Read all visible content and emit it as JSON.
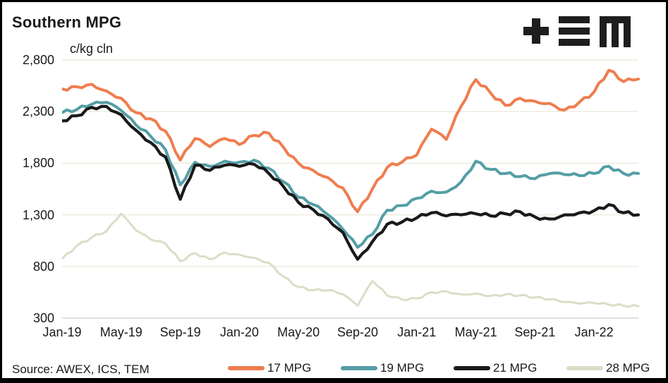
{
  "header": {
    "title": "Southern MPG",
    "units_label": "c/kg cln",
    "logo": {
      "name": "tem-logo",
      "color": "#1e1e1e"
    }
  },
  "source": {
    "label": "Source: AWEX, ICS, TEM"
  },
  "chart_data": {
    "type": "line",
    "title": "Southern MPG",
    "ylabel": "c/kg cln",
    "x_start": "Jan-19",
    "x_step": "1 month",
    "x_tick_labels": [
      "Jan-19",
      "May-19",
      "Sep-19",
      "Jan-20",
      "May-20",
      "Sep-20",
      "Jan-21",
      "May-21",
      "Sep-21",
      "Jan-22"
    ],
    "x_tick_every_months": 4,
    "ylim": [
      300,
      2800
    ],
    "yticks": [
      2800,
      2300,
      1800,
      1300,
      800,
      300
    ],
    "ytick_labels": [
      "2,800",
      "2,300",
      "1,800",
      "1,300",
      "800",
      "300"
    ],
    "grid": true,
    "grid_color": "#eceade",
    "axis_color": "#d6d6d6",
    "legend_position": "bottom",
    "months": [
      "Jan-19",
      "Feb-19",
      "Mar-19",
      "Apr-19",
      "May-19",
      "Jun-19",
      "Jul-19",
      "Aug-19",
      "Sep-19",
      "Oct-19",
      "Nov-19",
      "Dec-19",
      "Jan-20",
      "Feb-20",
      "Mar-20",
      "Apr-20",
      "May-20",
      "Jun-20",
      "Jul-20",
      "Aug-20",
      "Sep-20",
      "Oct-20",
      "Nov-20",
      "Dec-20",
      "Jan-21",
      "Feb-21",
      "Mar-21",
      "Apr-21",
      "May-21",
      "Jun-21",
      "Jul-21",
      "Aug-21",
      "Sep-21",
      "Oct-21",
      "Nov-21",
      "Dec-21",
      "Jan-22",
      "Feb-22",
      "Mar-22",
      "Apr-22"
    ],
    "series": [
      {
        "name": "17 MPG",
        "color": "#ef7d4f",
        "stroke_width": 4,
        "noise": 20,
        "values": [
          2520,
          2540,
          2565,
          2500,
          2430,
          2290,
          2230,
          2110,
          1830,
          2040,
          1960,
          2040,
          1980,
          2070,
          2090,
          1950,
          1800,
          1730,
          1660,
          1560,
          1330,
          1550,
          1760,
          1810,
          1880,
          2130,
          2030,
          2350,
          2610,
          2480,
          2360,
          2430,
          2400,
          2380,
          2315,
          2390,
          2490,
          2700,
          2590,
          2615
        ]
      },
      {
        "name": "19 MPG",
        "color": "#549ea6",
        "stroke_width": 4,
        "noise": 18,
        "values": [
          2290,
          2320,
          2370,
          2390,
          2310,
          2170,
          2060,
          1930,
          1590,
          1810,
          1770,
          1820,
          1810,
          1830,
          1750,
          1620,
          1470,
          1400,
          1300,
          1160,
          985,
          1110,
          1345,
          1390,
          1460,
          1530,
          1520,
          1620,
          1820,
          1740,
          1700,
          1670,
          1650,
          1700,
          1690,
          1680,
          1700,
          1770,
          1700,
          1700
        ]
      },
      {
        "name": "21 MPG",
        "color": "#1a1a1a",
        "stroke_width": 4.2,
        "noise": 18,
        "values": [
          2210,
          2260,
          2340,
          2350,
          2270,
          2120,
          2000,
          1860,
          1450,
          1780,
          1730,
          1780,
          1770,
          1790,
          1700,
          1570,
          1420,
          1350,
          1260,
          1130,
          870,
          1040,
          1210,
          1230,
          1270,
          1320,
          1290,
          1300,
          1310,
          1290,
          1310,
          1330,
          1280,
          1260,
          1300,
          1320,
          1340,
          1400,
          1320,
          1300
        ]
      },
      {
        "name": "28 MPG",
        "color": "#dcdcc8",
        "stroke_width": 3,
        "noise": 12,
        "values": [
          875,
          1000,
          1080,
          1140,
          1310,
          1150,
          1060,
          1020,
          850,
          930,
          870,
          935,
          915,
          885,
          835,
          700,
          600,
          570,
          570,
          530,
          420,
          660,
          520,
          480,
          490,
          550,
          560,
          530,
          540,
          515,
          530,
          520,
          500,
          480,
          455,
          440,
          445,
          430,
          420,
          415
        ]
      }
    ]
  }
}
